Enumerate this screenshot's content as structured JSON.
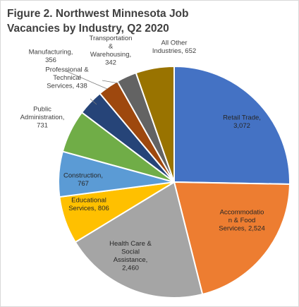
{
  "chart_data": {
    "type": "pie",
    "title_lines": [
      "Figure 2. Northwest Minnesota Job",
      "Vacancies by Industry, Q2 2020"
    ],
    "slices": [
      {
        "name": "Retail Trade",
        "value": 3072,
        "label_lines": [
          "Retail Trade,",
          "3,072"
        ],
        "color": "#4472c4"
      },
      {
        "name": "Accommodation & Food Services",
        "value": 2524,
        "label_lines": [
          "Accommodatio",
          "n & Food",
          "Services, 2,524"
        ],
        "color": "#ed7d31"
      },
      {
        "name": "Health Care & Social Assistance",
        "value": 2460,
        "label_lines": [
          "Health Care &",
          "Social",
          "Assistance,",
          "2,460"
        ],
        "color": "#a5a5a5"
      },
      {
        "name": "Educational Services",
        "value": 806,
        "label_lines": [
          "Educational",
          "Services, 806"
        ],
        "color": "#ffc000"
      },
      {
        "name": "Construction",
        "value": 767,
        "label_lines": [
          "Construction,",
          "767"
        ],
        "color": "#5b9bd5"
      },
      {
        "name": "Public Administration",
        "value": 731,
        "label_lines": [
          "Public",
          "Administration,",
          "731"
        ],
        "color": "#70ad47"
      },
      {
        "name": "Professional & Technical Services",
        "value": 438,
        "label_lines": [
          "Professional &",
          "Technical",
          "Services, 438"
        ],
        "color": "#264478"
      },
      {
        "name": "Manufacturing",
        "value": 356,
        "label_lines": [
          "Manufacturing,",
          "356"
        ],
        "color": "#9e480e"
      },
      {
        "name": "Transportation & Warehousing",
        "value": 342,
        "label_lines": [
          "Transportation",
          "&",
          "Warehousing,",
          "342"
        ],
        "color": "#636363"
      },
      {
        "name": "All Other Industries",
        "value": 652,
        "label_lines": [
          "All Other",
          "Industries, 652"
        ],
        "color": "#997300"
      }
    ]
  }
}
